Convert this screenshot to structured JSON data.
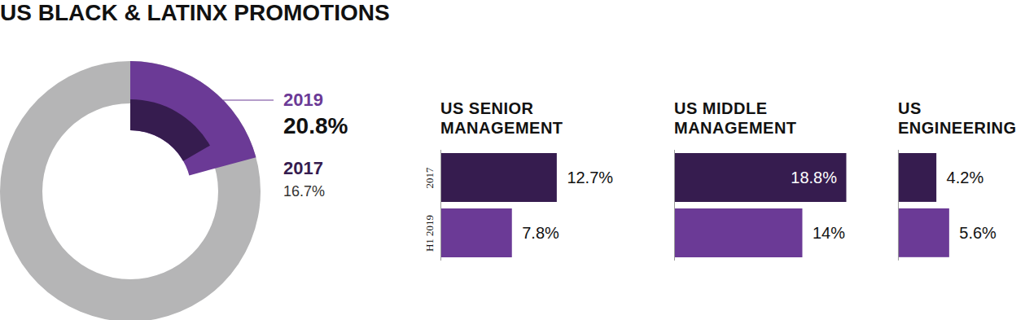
{
  "title": "US BLACK & LATINX PROMOTIONS",
  "chart_data": [
    {
      "type": "donut",
      "ylim": [
        0,
        100
      ],
      "data_labels": true,
      "series": [
        {
          "name": "2019",
          "color": "#6b3a96",
          "values": [
            20.8
          ],
          "value_labels": [
            "20.8%"
          ]
        },
        {
          "name": "2017",
          "color": "#361c4f",
          "values": [
            16.7
          ],
          "value_labels": [
            "16.7%"
          ]
        }
      ]
    },
    {
      "type": "bar",
      "title": "US SENIOR MANAGEMENT",
      "orientation": "horizontal",
      "categories": [
        "2017",
        "H1 2019"
      ],
      "values": [
        12.7,
        7.8
      ],
      "value_labels": [
        "12.7%",
        "7.8%"
      ],
      "colors": [
        "#361c4f",
        "#6b3a96"
      ],
      "xlim": [
        0,
        20
      ],
      "data_labels": true,
      "tick_labels": "y"
    },
    {
      "type": "bar",
      "title": "US MIDDLE MANAGEMENT",
      "orientation": "horizontal",
      "categories": [
        "2017",
        "H1 2019"
      ],
      "values": [
        18.8,
        14
      ],
      "value_labels": [
        "18.8%",
        "14%"
      ],
      "colors": [
        "#361c4f",
        "#6b3a96"
      ],
      "xlim": [
        0,
        20
      ],
      "data_labels": true,
      "tick_labels": false
    },
    {
      "type": "bar",
      "title": "US ENGINEERING",
      "orientation": "horizontal",
      "categories": [
        "2017",
        "H1 2019"
      ],
      "values": [
        4.2,
        5.6
      ],
      "value_labels": [
        "4.2%",
        "5.6%"
      ],
      "colors": [
        "#361c4f",
        "#6b3a96"
      ],
      "xlim": [
        0,
        13
      ],
      "data_labels": true,
      "tick_labels": false
    }
  ]
}
